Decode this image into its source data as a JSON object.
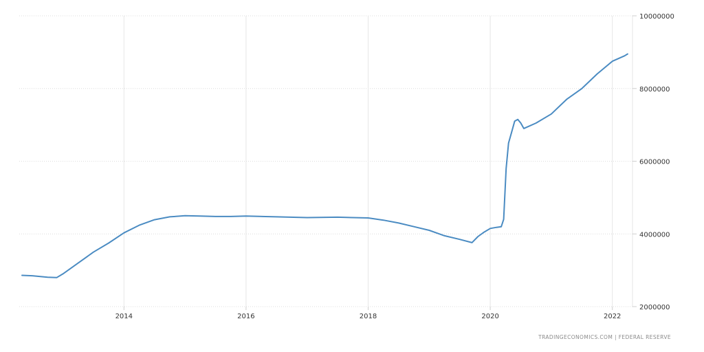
{
  "chart_data": {
    "type": "line",
    "title": "",
    "xlabel": "",
    "ylabel": "",
    "xlim": [
      2012.33,
      2022.33
    ],
    "ylim": [
      2000000,
      10000000
    ],
    "x_ticks": [
      2014,
      2016,
      2018,
      2020,
      2022
    ],
    "x_tick_labels": [
      "2014",
      "2016",
      "2018",
      "2020",
      "2022"
    ],
    "y_ticks": [
      2000000,
      4000000,
      6000000,
      8000000,
      10000000
    ],
    "y_tick_labels": [
      "2000000",
      "4000000",
      "6000000",
      "8000000",
      "10000000"
    ],
    "y_axis_position": "right",
    "grid": true,
    "line_color": "#4a8bc2",
    "series": [
      {
        "x": [
          2012.33,
          2012.5,
          2012.75,
          2012.9,
          2013.0,
          2013.25,
          2013.5,
          2013.75,
          2014.0,
          2014.25,
          2014.5,
          2014.75,
          2015.0,
          2015.25,
          2015.5,
          2015.75,
          2016.0,
          2016.5,
          2017.0,
          2017.5,
          2018.0,
          2018.25,
          2018.5,
          2018.75,
          2019.0,
          2019.25,
          2019.5,
          2019.7,
          2019.8,
          2019.9,
          2020.0,
          2020.1,
          2020.18,
          2020.22,
          2020.26,
          2020.3,
          2020.35,
          2020.4,
          2020.45,
          2020.5,
          2020.55,
          2020.75,
          2021.0,
          2021.25,
          2021.5,
          2021.75,
          2022.0,
          2022.2,
          2022.25
        ],
        "y": [
          2860000,
          2850000,
          2810000,
          2800000,
          2900000,
          3200000,
          3500000,
          3750000,
          4030000,
          4240000,
          4390000,
          4470000,
          4500000,
          4490000,
          4480000,
          4480000,
          4490000,
          4470000,
          4450000,
          4460000,
          4440000,
          4380000,
          4300000,
          4200000,
          4100000,
          3950000,
          3850000,
          3760000,
          3930000,
          4050000,
          4150000,
          4180000,
          4200000,
          4400000,
          5800000,
          6500000,
          6800000,
          7100000,
          7150000,
          7050000,
          6900000,
          7050000,
          7300000,
          7700000,
          8000000,
          8400000,
          8750000,
          8900000,
          8950000
        ]
      }
    ]
  },
  "attribution": "TRADINGECONOMICS.COM  |  FEDERAL RESERVE"
}
